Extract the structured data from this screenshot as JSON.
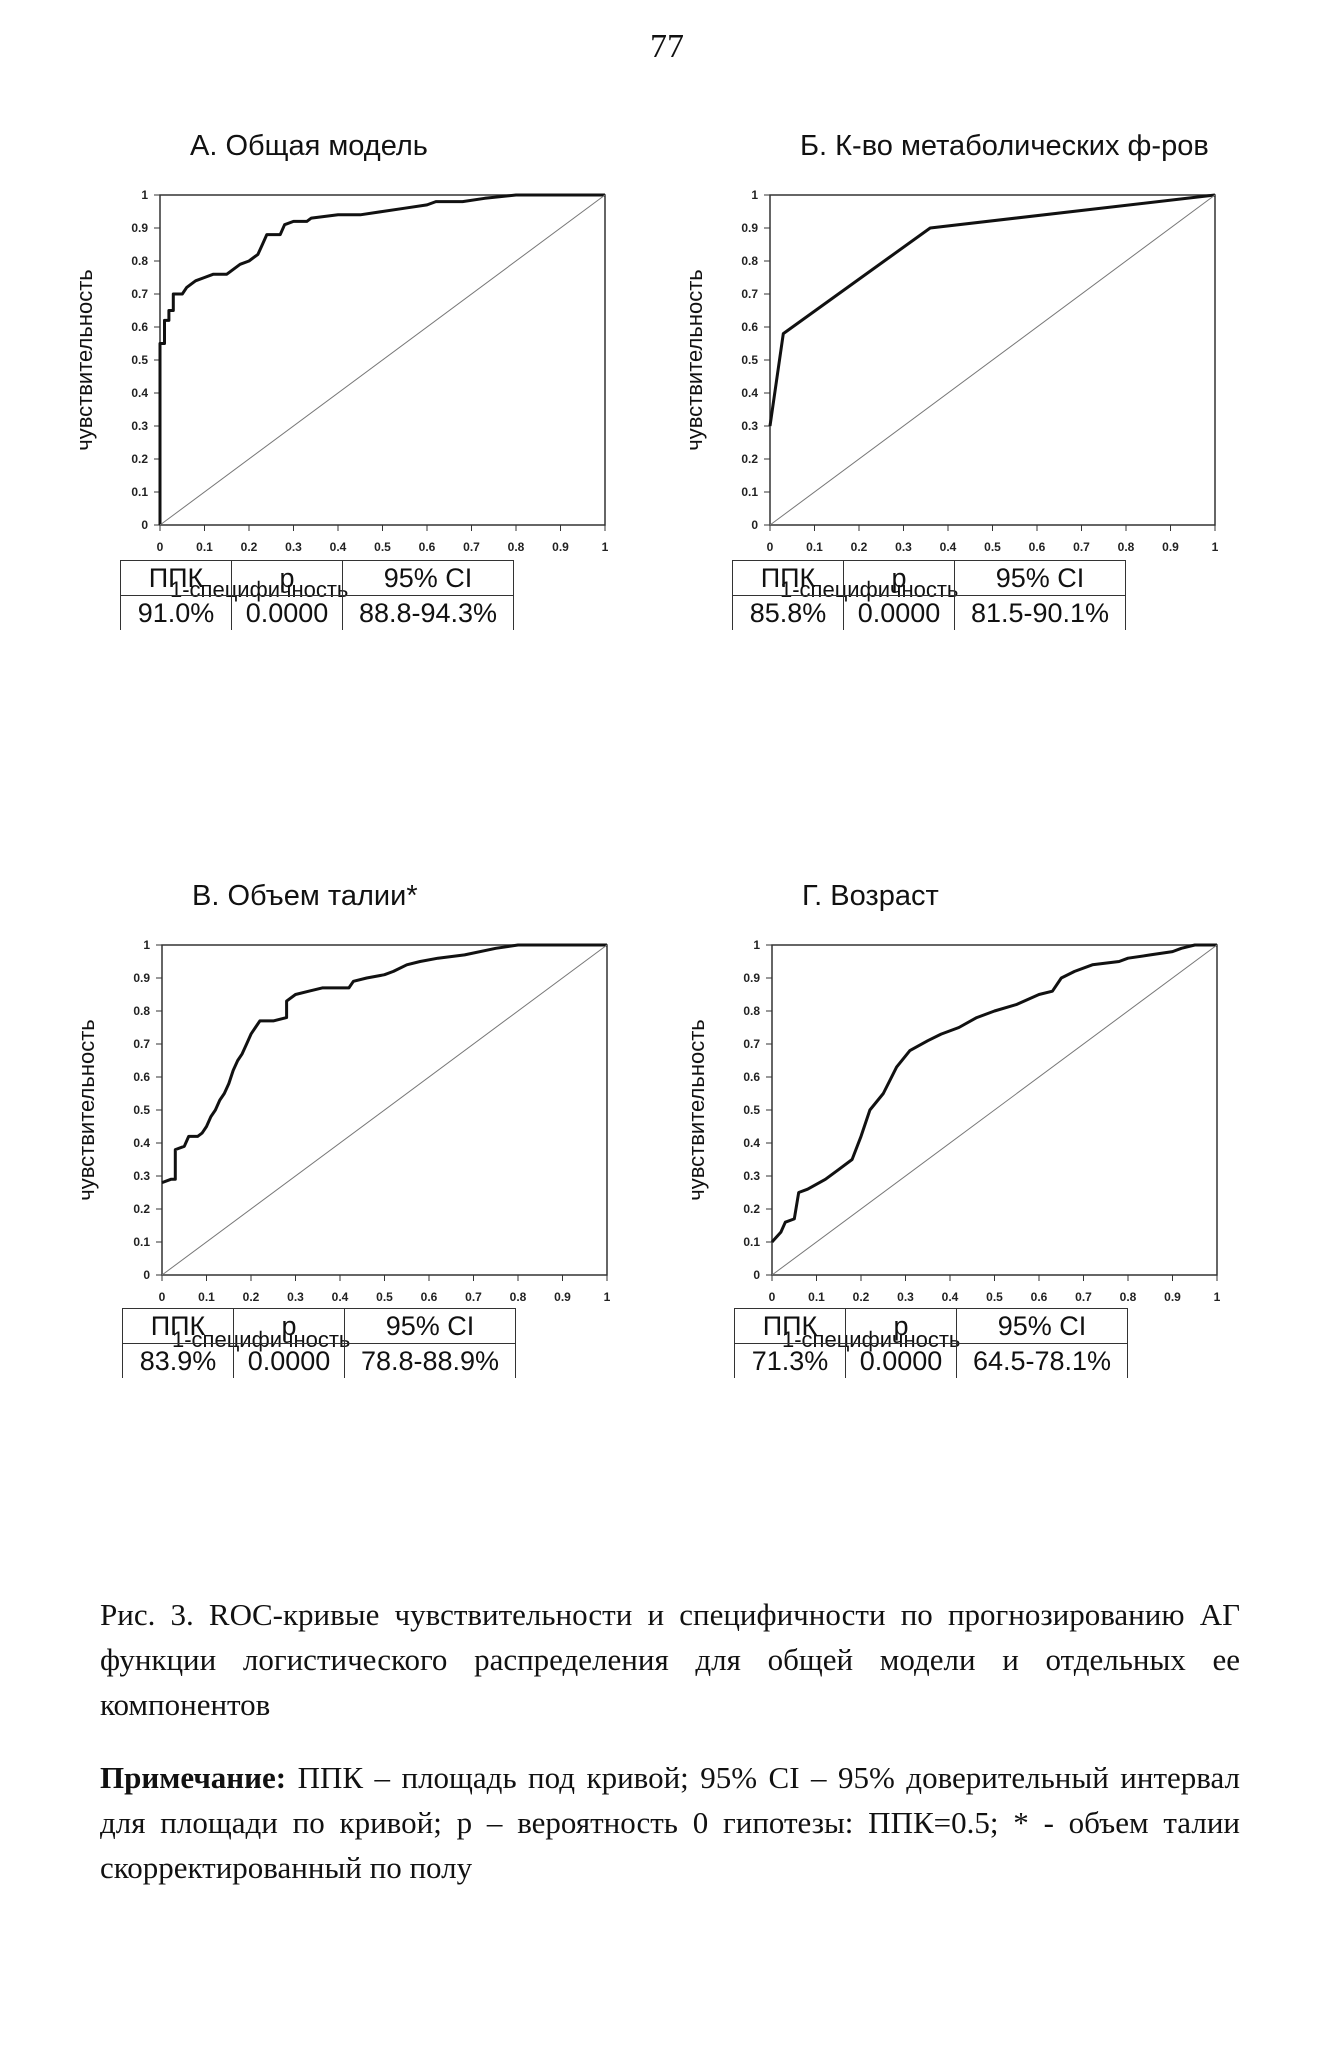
{
  "page_number": "77",
  "caption": {
    "figure": "Рис. 3. ROC-кривые чувствительности и специфичности по прогнозированию АГ функции логистического распределения для общей модели и отдельных ее компонентов",
    "note_label": "Примечание:",
    "note_text": " ППК – площадь под кривой; 95% CI – 95% доверительный интервал для площади по кривой; p – вероятность 0 гипотезы: ППК=0.5; * - объем талии скорректированный по полу"
  },
  "table_headers": [
    "ППК",
    "p",
    "95% CI"
  ],
  "chart_data": [
    {
      "type": "line",
      "title": "А. Общая модель",
      "xlabel": "1-специфичность",
      "ylabel": "чувствительность",
      "xlim": [
        0,
        1
      ],
      "ylim": [
        0,
        1
      ],
      "x_ticks": [
        "0",
        "0.1",
        "0.2",
        "0.3",
        "0.4",
        "0.5",
        "0.6",
        "0.7",
        "0.8",
        "0.9",
        "1"
      ],
      "y_ticks": [
        "0",
        "0.1",
        "0.2",
        "0.3",
        "0.4",
        "0.5",
        "0.6",
        "0.7",
        "0.8",
        "0.9",
        "1"
      ],
      "grid": false,
      "stats": {
        "auc": "91.0%",
        "p": "0.0000",
        "ci": "88.8-94.3%"
      },
      "series": [
        {
          "values": [
            [
              0,
              0
            ],
            [
              0,
              0.55
            ],
            [
              0.01,
              0.55
            ],
            [
              0.01,
              0.62
            ],
            [
              0.02,
              0.62
            ],
            [
              0.02,
              0.65
            ],
            [
              0.03,
              0.65
            ],
            [
              0.03,
              0.7
            ],
            [
              0.05,
              0.7
            ],
            [
              0.06,
              0.72
            ],
            [
              0.07,
              0.73
            ],
            [
              0.08,
              0.74
            ],
            [
              0.1,
              0.75
            ],
            [
              0.12,
              0.76
            ],
            [
              0.15,
              0.76
            ],
            [
              0.16,
              0.77
            ],
            [
              0.18,
              0.79
            ],
            [
              0.2,
              0.8
            ],
            [
              0.22,
              0.82
            ],
            [
              0.23,
              0.85
            ],
            [
              0.24,
              0.88
            ],
            [
              0.27,
              0.88
            ],
            [
              0.28,
              0.91
            ],
            [
              0.3,
              0.92
            ],
            [
              0.33,
              0.92
            ],
            [
              0.34,
              0.93
            ],
            [
              0.4,
              0.94
            ],
            [
              0.45,
              0.94
            ],
            [
              0.5,
              0.95
            ],
            [
              0.55,
              0.96
            ],
            [
              0.6,
              0.97
            ],
            [
              0.62,
              0.98
            ],
            [
              0.68,
              0.98
            ],
            [
              0.73,
              0.99
            ],
            [
              0.8,
              1
            ],
            [
              1,
              1
            ]
          ]
        },
        {
          "values": [
            [
              0,
              0
            ],
            [
              1,
              1
            ]
          ]
        }
      ]
    },
    {
      "type": "line",
      "title": "Б. К-во метаболических ф-ров",
      "xlabel": "1-специфичность",
      "ylabel": "чувствительность",
      "xlim": [
        0,
        1
      ],
      "ylim": [
        0,
        1
      ],
      "x_ticks": [
        "0",
        "0.1",
        "0.2",
        "0.3",
        "0.4",
        "0.5",
        "0.6",
        "0.7",
        "0.8",
        "0.9",
        "1"
      ],
      "y_ticks": [
        "0",
        "0.1",
        "0.2",
        "0.3",
        "0.4",
        "0.5",
        "0.6",
        "0.7",
        "0.8",
        "0.9",
        "1"
      ],
      "grid": false,
      "stats": {
        "auc": "85.8%",
        "p": "0.0000",
        "ci": "81.5-90.1%"
      },
      "series": [
        {
          "values": [
            [
              0,
              0.3
            ],
            [
              0.03,
              0.58
            ],
            [
              0.36,
              0.9
            ],
            [
              1,
              1
            ]
          ]
        },
        {
          "values": [
            [
              0,
              0
            ],
            [
              1,
              1
            ]
          ]
        }
      ]
    },
    {
      "type": "line",
      "title": "В. Объем талии*",
      "xlabel": "1-специфичность",
      "ylabel": "чувствительность",
      "xlim": [
        0,
        1
      ],
      "ylim": [
        0,
        1
      ],
      "x_ticks": [
        "0",
        "0.1",
        "0.2",
        "0.3",
        "0.4",
        "0.5",
        "0.6",
        "0.7",
        "0.8",
        "0.9",
        "1"
      ],
      "y_ticks": [
        "0",
        "0.1",
        "0.2",
        "0.3",
        "0.4",
        "0.5",
        "0.6",
        "0.7",
        "0.8",
        "0.9",
        "1"
      ],
      "grid": false,
      "stats": {
        "auc": "83.9%",
        "p": "0.0000",
        "ci": "78.8-88.9%"
      },
      "series": [
        {
          "values": [
            [
              0,
              0.28
            ],
            [
              0.02,
              0.29
            ],
            [
              0.03,
              0.29
            ],
            [
              0.03,
              0.38
            ],
            [
              0.05,
              0.39
            ],
            [
              0.06,
              0.42
            ],
            [
              0.08,
              0.42
            ],
            [
              0.09,
              0.43
            ],
            [
              0.1,
              0.45
            ],
            [
              0.11,
              0.48
            ],
            [
              0.12,
              0.5
            ],
            [
              0.13,
              0.53
            ],
            [
              0.14,
              0.55
            ],
            [
              0.15,
              0.58
            ],
            [
              0.16,
              0.62
            ],
            [
              0.17,
              0.65
            ],
            [
              0.18,
              0.67
            ],
            [
              0.19,
              0.7
            ],
            [
              0.2,
              0.73
            ],
            [
              0.21,
              0.75
            ],
            [
              0.22,
              0.77
            ],
            [
              0.25,
              0.77
            ],
            [
              0.28,
              0.78
            ],
            [
              0.28,
              0.83
            ],
            [
              0.3,
              0.85
            ],
            [
              0.33,
              0.86
            ],
            [
              0.36,
              0.87
            ],
            [
              0.42,
              0.87
            ],
            [
              0.43,
              0.89
            ],
            [
              0.46,
              0.9
            ],
            [
              0.5,
              0.91
            ],
            [
              0.52,
              0.92
            ],
            [
              0.55,
              0.94
            ],
            [
              0.58,
              0.95
            ],
            [
              0.62,
              0.96
            ],
            [
              0.68,
              0.97
            ],
            [
              0.75,
              0.99
            ],
            [
              0.8,
              1
            ],
            [
              1,
              1
            ]
          ]
        },
        {
          "values": [
            [
              0,
              0
            ],
            [
              1,
              1
            ]
          ]
        }
      ]
    },
    {
      "type": "line",
      "title": "Г. Возраст",
      "xlabel": "1-специфичность",
      "ylabel": "чувствительность",
      "xlim": [
        0,
        1
      ],
      "ylim": [
        0,
        1
      ],
      "x_ticks": [
        "0",
        "0.1",
        "0.2",
        "0.3",
        "0.4",
        "0.5",
        "0.6",
        "0.7",
        "0.8",
        "0.9",
        "1"
      ],
      "y_ticks": [
        "0",
        "0.1",
        "0.2",
        "0.3",
        "0.4",
        "0.5",
        "0.6",
        "0.7",
        "0.8",
        "0.9",
        "1"
      ],
      "grid": false,
      "stats": {
        "auc": "71.3%",
        "p": "0.0000",
        "ci": "64.5-78.1%"
      },
      "series": [
        {
          "values": [
            [
              0,
              0.1
            ],
            [
              0.02,
              0.13
            ],
            [
              0.03,
              0.16
            ],
            [
              0.05,
              0.17
            ],
            [
              0.06,
              0.25
            ],
            [
              0.08,
              0.26
            ],
            [
              0.12,
              0.29
            ],
            [
              0.15,
              0.32
            ],
            [
              0.18,
              0.35
            ],
            [
              0.2,
              0.42
            ],
            [
              0.22,
              0.5
            ],
            [
              0.25,
              0.55
            ],
            [
              0.28,
              0.63
            ],
            [
              0.31,
              0.68
            ],
            [
              0.35,
              0.71
            ],
            [
              0.38,
              0.73
            ],
            [
              0.42,
              0.75
            ],
            [
              0.46,
              0.78
            ],
            [
              0.5,
              0.8
            ],
            [
              0.55,
              0.82
            ],
            [
              0.6,
              0.85
            ],
            [
              0.63,
              0.86
            ],
            [
              0.65,
              0.9
            ],
            [
              0.68,
              0.92
            ],
            [
              0.72,
              0.94
            ],
            [
              0.78,
              0.95
            ],
            [
              0.8,
              0.96
            ],
            [
              0.85,
              0.97
            ],
            [
              0.9,
              0.98
            ],
            [
              0.92,
              0.99
            ],
            [
              0.95,
              1
            ],
            [
              1,
              1
            ]
          ]
        },
        {
          "values": [
            [
              0,
              0
            ],
            [
              1,
              1
            ]
          ]
        }
      ]
    }
  ]
}
